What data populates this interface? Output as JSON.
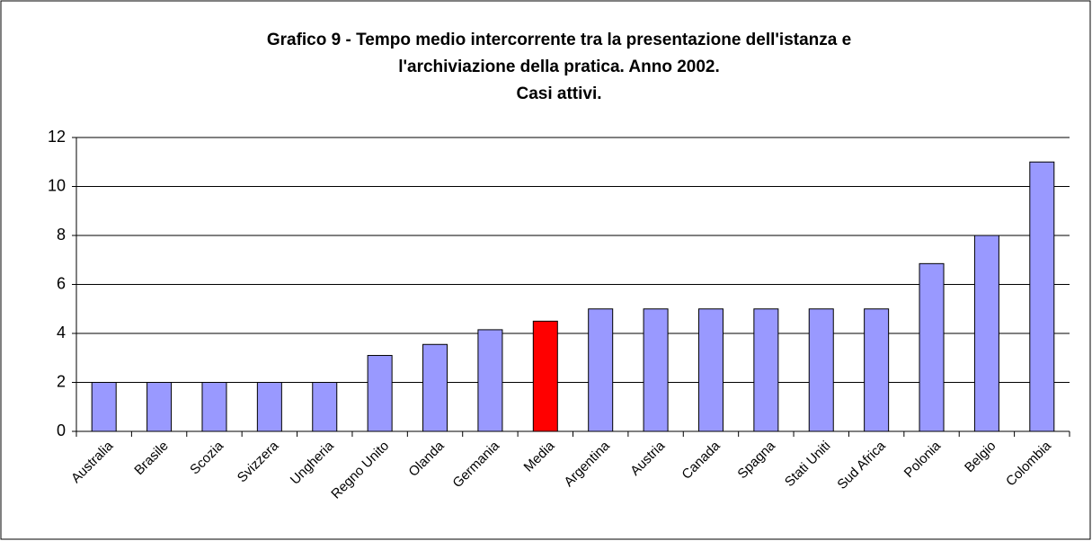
{
  "chart_data": {
    "type": "bar",
    "title": [
      "Grafico 9 - Tempo medio intercorrente tra la presentazione dell'istanza e",
      "l'archiviazione della pratica. Anno 2002.",
      "Casi attivi."
    ],
    "categories": [
      "Australia",
      "Brasile",
      "Scozia",
      "Svizzera",
      "Ungheria",
      "Regno Unito",
      "Olanda",
      "Germania",
      "Media",
      "Argentina",
      "Austria",
      "Canada",
      "Spagna",
      "Stati Uniti",
      "Sud Africa",
      "Polonia",
      "Belgio",
      "Colombia"
    ],
    "values": [
      2,
      2,
      2,
      2,
      2,
      3.1,
      3.55,
      4.15,
      4.5,
      5,
      5,
      5,
      5,
      5,
      5,
      6.85,
      8,
      11
    ],
    "colors": [
      "#9999ff",
      "#9999ff",
      "#9999ff",
      "#9999ff",
      "#9999ff",
      "#9999ff",
      "#9999ff",
      "#9999ff",
      "#ff0000",
      "#9999ff",
      "#9999ff",
      "#9999ff",
      "#9999ff",
      "#9999ff",
      "#9999ff",
      "#9999ff",
      "#9999ff",
      "#9999ff"
    ],
    "ylim": [
      0,
      12
    ],
    "yticks": [
      0,
      2,
      4,
      6,
      8,
      10,
      12
    ],
    "grid": true
  }
}
